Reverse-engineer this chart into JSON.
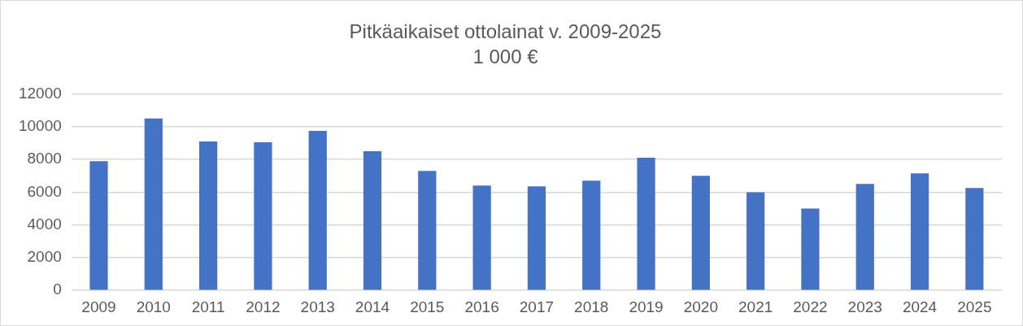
{
  "chart_data": {
    "type": "bar",
    "title": "Pitkäaikaiset ottolainat v. 2009-2025",
    "subtitle": "1 000 €",
    "categories": [
      "2009",
      "2010",
      "2011",
      "2012",
      "2013",
      "2014",
      "2015",
      "2016",
      "2017",
      "2018",
      "2019",
      "2020",
      "2021",
      "2022",
      "2023",
      "2024",
      "2025"
    ],
    "values": [
      7900,
      10500,
      9100,
      9050,
      9750,
      8500,
      7300,
      6400,
      6350,
      6700,
      8100,
      7000,
      6000,
      5000,
      6500,
      7150,
      6250
    ],
    "color": "#4472c4",
    "ylim": [
      0,
      12000
    ],
    "yticks": [
      0,
      2000,
      4000,
      6000,
      8000,
      10000,
      12000
    ],
    "grid": "y",
    "legend": false
  }
}
